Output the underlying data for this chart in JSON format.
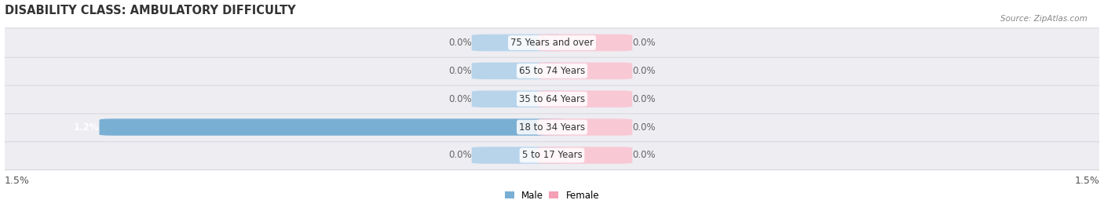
{
  "title": "DISABILITY CLASS: AMBULATORY DIFFICULTY",
  "source": "Source: ZipAtlas.com",
  "categories": [
    "5 to 17 Years",
    "18 to 34 Years",
    "35 to 64 Years",
    "65 to 74 Years",
    "75 Years and over"
  ],
  "male_values": [
    0.0,
    1.2,
    0.0,
    0.0,
    0.0
  ],
  "female_values": [
    0.0,
    0.0,
    0.0,
    0.0,
    0.0
  ],
  "male_color": "#7aafd4",
  "female_color": "#f4a0b5",
  "male_color_dim": "#b8d4eb",
  "female_color_dim": "#f9c8d5",
  "xlim": 1.5,
  "title_fontsize": 10.5,
  "label_fontsize": 8.5,
  "axis_label_fontsize": 9,
  "fig_bg_color": "#ffffff",
  "bar_height": 0.52,
  "row_bg_color": "#ededf2",
  "row_edge_color": "#d8d8e0"
}
